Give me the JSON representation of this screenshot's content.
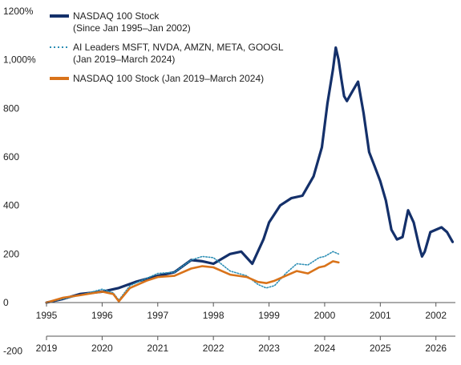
{
  "chart_data": {
    "type": "line",
    "y_axis": {
      "ylim": [
        -200,
        1200
      ],
      "ticks": [
        -200,
        0,
        200,
        400,
        600,
        800,
        1000,
        1200
      ],
      "tick_labels": [
        "-200",
        "0",
        "200",
        "400",
        "600",
        "800",
        "1,000%",
        "1200%"
      ]
    },
    "x_axis_top": {
      "ticks": [
        "1995",
        "1996",
        "1997",
        "1998",
        "1999",
        "2000",
        "2001",
        "2002"
      ],
      "xlim": [
        1995,
        2002.35
      ]
    },
    "x_axis_bottom": {
      "ticks": [
        "2019",
        "2020",
        "2021",
        "2022",
        "2023",
        "2024",
        "2025",
        "2026"
      ],
      "xlim": [
        2019,
        2026.35
      ]
    },
    "grid": false,
    "legend_position": "top-left",
    "series": [
      {
        "name": "NASDAQ 100 Stock\n(Since Jan 1995–Jan 2002)",
        "style": "solid-thick",
        "color": "#14306a",
        "x": [
          1995.0,
          1995.3,
          1995.6,
          1996.0,
          1996.3,
          1996.6,
          1997.0,
          1997.3,
          1997.6,
          1997.8,
          1998.0,
          1998.3,
          1998.5,
          1998.7,
          1998.9,
          1999.0,
          1999.2,
          1999.4,
          1999.6,
          1999.8,
          1999.95,
          2000.05,
          2000.15,
          2000.2,
          2000.25,
          2000.3,
          2000.35,
          2000.4,
          2000.5,
          2000.6,
          2000.7,
          2000.8,
          2000.9,
          2001.0,
          2001.1,
          2001.2,
          2001.3,
          2001.4,
          2001.5,
          2001.6,
          2001.7,
          2001.75,
          2001.8,
          2001.9,
          2002.0,
          2002.1,
          2002.2,
          2002.3
        ],
        "values": [
          0,
          15,
          35,
          45,
          60,
          85,
          110,
          125,
          175,
          170,
          160,
          200,
          210,
          160,
          260,
          330,
          400,
          430,
          440,
          520,
          640,
          820,
          960,
          1050,
          1000,
          920,
          850,
          830,
          870,
          910,
          780,
          620,
          560,
          500,
          420,
          300,
          260,
          270,
          380,
          330,
          230,
          190,
          210,
          290,
          300,
          310,
          290,
          250
        ]
      },
      {
        "name": "AI Leaders MSFT, NVDA, AMZN, META, GOOGL\n(Jan 2019–March 2024)",
        "style": "dotted",
        "color": "#2e8fb5",
        "x": [
          2019.0,
          2019.3,
          2019.6,
          2020.0,
          2020.2,
          2020.3,
          2020.5,
          2020.8,
          2021.0,
          2021.3,
          2021.6,
          2021.8,
          2022.0,
          2022.3,
          2022.6,
          2022.8,
          2022.95,
          2023.1,
          2023.3,
          2023.5,
          2023.7,
          2023.9,
          2024.0,
          2024.15,
          2024.25
        ],
        "values": [
          0,
          15,
          30,
          55,
          40,
          10,
          70,
          100,
          120,
          125,
          175,
          190,
          185,
          130,
          110,
          75,
          60,
          70,
          120,
          160,
          155,
          185,
          190,
          210,
          200
        ]
      },
      {
        "name": "NASDAQ 100 Stock (Jan 2019–March 2024)",
        "style": "solid",
        "color": "#d9731a",
        "x": [
          2019.0,
          2019.3,
          2019.6,
          2020.0,
          2020.2,
          2020.3,
          2020.5,
          2020.8,
          2021.0,
          2021.3,
          2021.6,
          2021.8,
          2022.0,
          2022.3,
          2022.6,
          2022.8,
          2022.95,
          2023.1,
          2023.3,
          2023.5,
          2023.7,
          2023.9,
          2024.0,
          2024.15,
          2024.25
        ],
        "values": [
          0,
          20,
          30,
          45,
          35,
          5,
          60,
          90,
          105,
          110,
          140,
          150,
          145,
          115,
          105,
          85,
          80,
          90,
          110,
          130,
          120,
          145,
          150,
          170,
          165
        ]
      }
    ]
  }
}
